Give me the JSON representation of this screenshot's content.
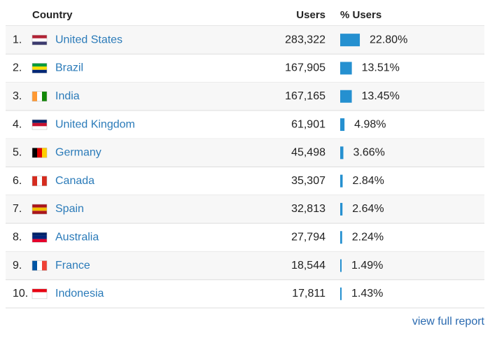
{
  "table": {
    "columns": [
      "Country",
      "Users",
      "% Users"
    ],
    "rows": [
      {
        "rank": "1.",
        "country": "United States",
        "users": "283,322",
        "share": {
          "value": 22.8,
          "label": "22.80%"
        }
      },
      {
        "rank": "2.",
        "country": "Brazil",
        "users": "167,905",
        "share": {
          "value": 13.51,
          "label": "13.51%"
        }
      },
      {
        "rank": "3.",
        "country": "India",
        "users": "167,165",
        "share": {
          "value": 13.45,
          "label": "13.45%"
        }
      },
      {
        "rank": "4.",
        "country": "United Kingdom",
        "users": "61,901",
        "share": {
          "value": 4.98,
          "label": "4.98%"
        }
      },
      {
        "rank": "5.",
        "country": "Germany",
        "users": "45,498",
        "share": {
          "value": 3.66,
          "label": "3.66%"
        }
      },
      {
        "rank": "6.",
        "country": "Canada",
        "users": "35,307",
        "share": {
          "value": 2.84,
          "label": "2.84%"
        }
      },
      {
        "rank": "7.",
        "country": "Spain",
        "users": "32,813",
        "share": {
          "value": 2.64,
          "label": "2.64%"
        }
      },
      {
        "rank": "8.",
        "country": "Australia",
        "users": "27,794",
        "share": {
          "value": 2.24,
          "label": "2.24%"
        }
      },
      {
        "rank": "9.",
        "country": "France",
        "users": "18,544",
        "share": {
          "value": 1.49,
          "label": "1.49%"
        }
      },
      {
        "rank": "10.",
        "country": "Indonesia",
        "users": "17,811",
        "share": {
          "value": 1.43,
          "label": "1.43%"
        }
      }
    ]
  },
  "footer": {
    "link": "view full report"
  }
}
